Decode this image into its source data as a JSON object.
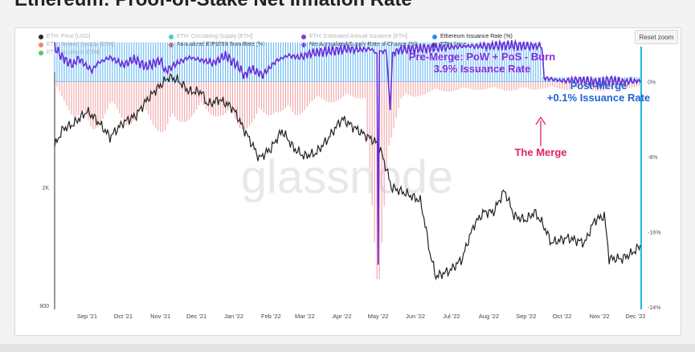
{
  "page": {
    "title": "Ethereum: Proof-of-Stake Net Inflation Rate"
  },
  "toolbar": {
    "reset_zoom": "Reset zoom"
  },
  "legend": [
    {
      "label": "ETH: Price [USD]",
      "color": "#2b2b2b",
      "faded": true,
      "icon": "legend-dot"
    },
    {
      "label": "ETH: Circulating Supply [ETH]",
      "color": "#3fd0cf",
      "faded": true,
      "icon": "legend-dot"
    },
    {
      "label": "ETH: Estimated Annual Issuance [ETH]",
      "color": "#7c3aed",
      "faded": true,
      "icon": "legend-dot"
    },
    {
      "label": "Ethereum Issuance Rate (%)",
      "color": "#2d8fe0",
      "faded": false,
      "icon": "legend-dot"
    },
    {
      "label": "ETH: Burned Supply [ETH]",
      "color": "#f08080",
      "faded": true,
      "icon": "legend-dot"
    },
    {
      "label": "Annualized EIP1559 Burn Rate (%)",
      "color": "#e24b4b",
      "faded": false,
      "icon": "legend-dot"
    },
    {
      "label": "Net Annualized Supply Rate of Change (%)",
      "color": "#6d28d9",
      "faded": false,
      "icon": "legend-dot"
    },
    {
      "label": "ETH Price",
      "color": "#222222",
      "faded": false,
      "icon": "legend-dot"
    },
    {
      "label": "ETH: Issuance [ETH]",
      "color": "#58c46a",
      "faded": true,
      "icon": "legend-dot"
    }
  ],
  "watermark": "glassnode",
  "annotations": {
    "pre_merge_line1": "Pre-Merge: PoW + PoS - Burn",
    "pre_merge_line2": "3.9% Issuance Rate",
    "post_merge_line1": "Post-Merge",
    "post_merge_line2": "+0.1% Issuance Rate",
    "the_merge": "The Merge"
  },
  "colors": {
    "issuance_bar": "#63b8f5",
    "burn_bar": "#f3a3a6",
    "net_line": "#6a2bd8",
    "price_line": "#222222",
    "right_axis": "#23b9d6",
    "pre_merge_text": "#8a2be2",
    "post_merge_text": "#1f62d6",
    "merge_text": "#e0245e"
  },
  "chart_data": {
    "type": "line",
    "title": "Ethereum: Proof-of-Stake Net Inflation Rate",
    "x_tick_labels": [
      "Sep '21",
      "Oct '21",
      "Nov '21",
      "Dec '21",
      "Jan '22",
      "Feb '22",
      "Mar '22",
      "Apr '22",
      "May '22",
      "Jun '22",
      "Jul '22",
      "Aug '22",
      "Sep '22",
      "Oct '22",
      "Nov '22",
      "Dec '22"
    ],
    "left_axis": {
      "scale": "log",
      "tick_labels": [
        "2K",
        "800"
      ],
      "tick_values": [
        2000,
        800
      ]
    },
    "right_axis": {
      "tick_labels": [
        "0%",
        "-8%",
        "-16%",
        "-24%"
      ],
      "tick_values": [
        0,
        -8,
        -16,
        -24
      ],
      "range": [
        -24,
        4
      ]
    },
    "x_range": [
      "2021-08-05",
      "2022-12-05"
    ],
    "merge_date": "2022-09-15",
    "series": [
      {
        "name": "Ethereum Issuance Rate (%)",
        "kind": "bar",
        "segments": [
          {
            "from": "2021-08-05",
            "to": "2022-09-15",
            "value": 4.2
          },
          {
            "from": "2022-09-15",
            "to": "2022-12-05",
            "value": 0.5
          }
        ]
      },
      {
        "name": "Annualized EIP1559 Burn Rate (%)",
        "kind": "bar",
        "points": [
          [
            "2021-08-05",
            -0.3
          ],
          [
            "2021-08-20",
            -3.0
          ],
          [
            "2021-09-05",
            -4.5
          ],
          [
            "2021-09-20",
            -2.5
          ],
          [
            "2021-10-05",
            -3.8
          ],
          [
            "2021-10-20",
            -3.2
          ],
          [
            "2021-11-05",
            -4.8
          ],
          [
            "2021-11-20",
            -3.5
          ],
          [
            "2021-12-05",
            -2.8
          ],
          [
            "2021-12-20",
            -3.0
          ],
          [
            "2022-01-05",
            -4.2
          ],
          [
            "2022-01-20",
            -3.8
          ],
          [
            "2022-02-05",
            -2.6
          ],
          [
            "2022-02-20",
            -3.4
          ],
          [
            "2022-03-05",
            -2.0
          ],
          [
            "2022-03-20",
            -1.8
          ],
          [
            "2022-04-05",
            -1.6
          ],
          [
            "2022-04-20",
            -1.4
          ],
          [
            "2022-05-01",
            -23.0
          ],
          [
            "2022-05-10",
            -5.5
          ],
          [
            "2022-05-20",
            -1.8
          ],
          [
            "2022-06-05",
            -1.2
          ],
          [
            "2022-06-20",
            -0.9
          ],
          [
            "2022-07-05",
            -0.8
          ],
          [
            "2022-07-20",
            -0.7
          ],
          [
            "2022-08-05",
            -0.7
          ],
          [
            "2022-08-20",
            -0.8
          ],
          [
            "2022-09-05",
            -0.7
          ],
          [
            "2022-09-20",
            -0.6
          ],
          [
            "2022-10-05",
            -0.7
          ],
          [
            "2022-10-20",
            -0.6
          ],
          [
            "2022-11-05",
            -0.9
          ],
          [
            "2022-11-20",
            -0.5
          ],
          [
            "2022-12-05",
            -0.6
          ]
        ]
      },
      {
        "name": "Net Annualized Supply Rate of Change (%)",
        "kind": "line",
        "points": [
          [
            "2021-08-05",
            3.7
          ],
          [
            "2021-08-10",
            2.8
          ],
          [
            "2021-08-15",
            2.2
          ],
          [
            "2021-08-20",
            1.8
          ],
          [
            "2021-08-25",
            2.5
          ],
          [
            "2021-09-01",
            1.6
          ],
          [
            "2021-09-05",
            1.2
          ],
          [
            "2021-09-10",
            2.0
          ],
          [
            "2021-09-20",
            2.6
          ],
          [
            "2021-10-01",
            1.8
          ],
          [
            "2021-10-10",
            2.4
          ],
          [
            "2021-10-20",
            1.6
          ],
          [
            "2021-11-01",
            2.3
          ],
          [
            "2021-11-05",
            1.1
          ],
          [
            "2021-11-15",
            2.0
          ],
          [
            "2021-11-25",
            2.6
          ],
          [
            "2021-12-05",
            2.3
          ],
          [
            "2021-12-15",
            2.0
          ],
          [
            "2021-12-25",
            2.8
          ],
          [
            "2022-01-05",
            1.6
          ],
          [
            "2022-01-10",
            0.6
          ],
          [
            "2022-01-15",
            1.4
          ],
          [
            "2022-01-25",
            0.7
          ],
          [
            "2022-02-05",
            2.2
          ],
          [
            "2022-02-15",
            2.8
          ],
          [
            "2022-02-25",
            2.6
          ],
          [
            "2022-03-05",
            3.0
          ],
          [
            "2022-03-15",
            3.2
          ],
          [
            "2022-03-25",
            3.3
          ],
          [
            "2022-04-05",
            3.5
          ],
          [
            "2022-04-15",
            3.4
          ],
          [
            "2022-04-25",
            3.5
          ],
          [
            "2022-04-30",
            3.0
          ],
          [
            "2022-05-01",
            -19.5
          ],
          [
            "2022-05-02",
            3.3
          ],
          [
            "2022-05-08",
            3.2
          ],
          [
            "2022-05-11",
            -3.0
          ],
          [
            "2022-05-13",
            3.1
          ],
          [
            "2022-05-20",
            3.4
          ],
          [
            "2022-06-01",
            3.5
          ],
          [
            "2022-06-15",
            3.6
          ],
          [
            "2022-07-01",
            3.7
          ],
          [
            "2022-07-15",
            3.8
          ],
          [
            "2022-08-01",
            3.8
          ],
          [
            "2022-08-15",
            3.9
          ],
          [
            "2022-09-01",
            3.8
          ],
          [
            "2022-09-14",
            3.8
          ],
          [
            "2022-09-16",
            0.4
          ],
          [
            "2022-10-01",
            0.1
          ],
          [
            "2022-10-15",
            0.2
          ],
          [
            "2022-11-01",
            -0.1
          ],
          [
            "2022-11-10",
            0.2
          ],
          [
            "2022-11-20",
            0.0
          ],
          [
            "2022-12-05",
            0.1
          ]
        ]
      },
      {
        "name": "ETH Price",
        "kind": "line",
        "axis": "left",
        "points": [
          [
            "2021-08-05",
            2750
          ],
          [
            "2021-08-12",
            3150
          ],
          [
            "2021-08-20",
            3250
          ],
          [
            "2021-09-01",
            3600
          ],
          [
            "2021-09-08",
            3400
          ],
          [
            "2021-09-20",
            2950
          ],
          [
            "2021-10-01",
            3300
          ],
          [
            "2021-10-12",
            3500
          ],
          [
            "2021-10-20",
            3900
          ],
          [
            "2021-10-28",
            4250
          ],
          [
            "2021-11-08",
            4700
          ],
          [
            "2021-11-15",
            4600
          ],
          [
            "2021-11-25",
            4200
          ],
          [
            "2021-12-05",
            4200
          ],
          [
            "2021-12-10",
            3800
          ],
          [
            "2021-12-20",
            3950
          ],
          [
            "2021-12-31",
            3700
          ],
          [
            "2022-01-10",
            3100
          ],
          [
            "2022-01-22",
            2500
          ],
          [
            "2022-02-01",
            2700
          ],
          [
            "2022-02-10",
            3100
          ],
          [
            "2022-02-20",
            2700
          ],
          [
            "2022-02-28",
            2550
          ],
          [
            "2022-03-10",
            2600
          ],
          [
            "2022-03-20",
            2900
          ],
          [
            "2022-04-01",
            3400
          ],
          [
            "2022-04-10",
            3200
          ],
          [
            "2022-04-20",
            3000
          ],
          [
            "2022-05-01",
            2800
          ],
          [
            "2022-05-12",
            2000
          ],
          [
            "2022-05-25",
            1900
          ],
          [
            "2022-06-05",
            1800
          ],
          [
            "2022-06-13",
            1200
          ],
          [
            "2022-06-18",
            1000
          ],
          [
            "2022-06-30",
            1050
          ],
          [
            "2022-07-10",
            1150
          ],
          [
            "2022-07-20",
            1500
          ],
          [
            "2022-07-28",
            1650
          ],
          [
            "2022-08-05",
            1650
          ],
          [
            "2022-08-14",
            1950
          ],
          [
            "2022-08-22",
            1600
          ],
          [
            "2022-09-01",
            1550
          ],
          [
            "2022-09-08",
            1650
          ],
          [
            "2022-09-15",
            1500
          ],
          [
            "2022-09-22",
            1300
          ],
          [
            "2022-10-05",
            1350
          ],
          [
            "2022-10-20",
            1300
          ],
          [
            "2022-10-28",
            1550
          ],
          [
            "2022-11-05",
            1600
          ],
          [
            "2022-11-09",
            1150
          ],
          [
            "2022-11-20",
            1150
          ],
          [
            "2022-11-28",
            1200
          ],
          [
            "2022-12-05",
            1270
          ]
        ]
      }
    ]
  }
}
